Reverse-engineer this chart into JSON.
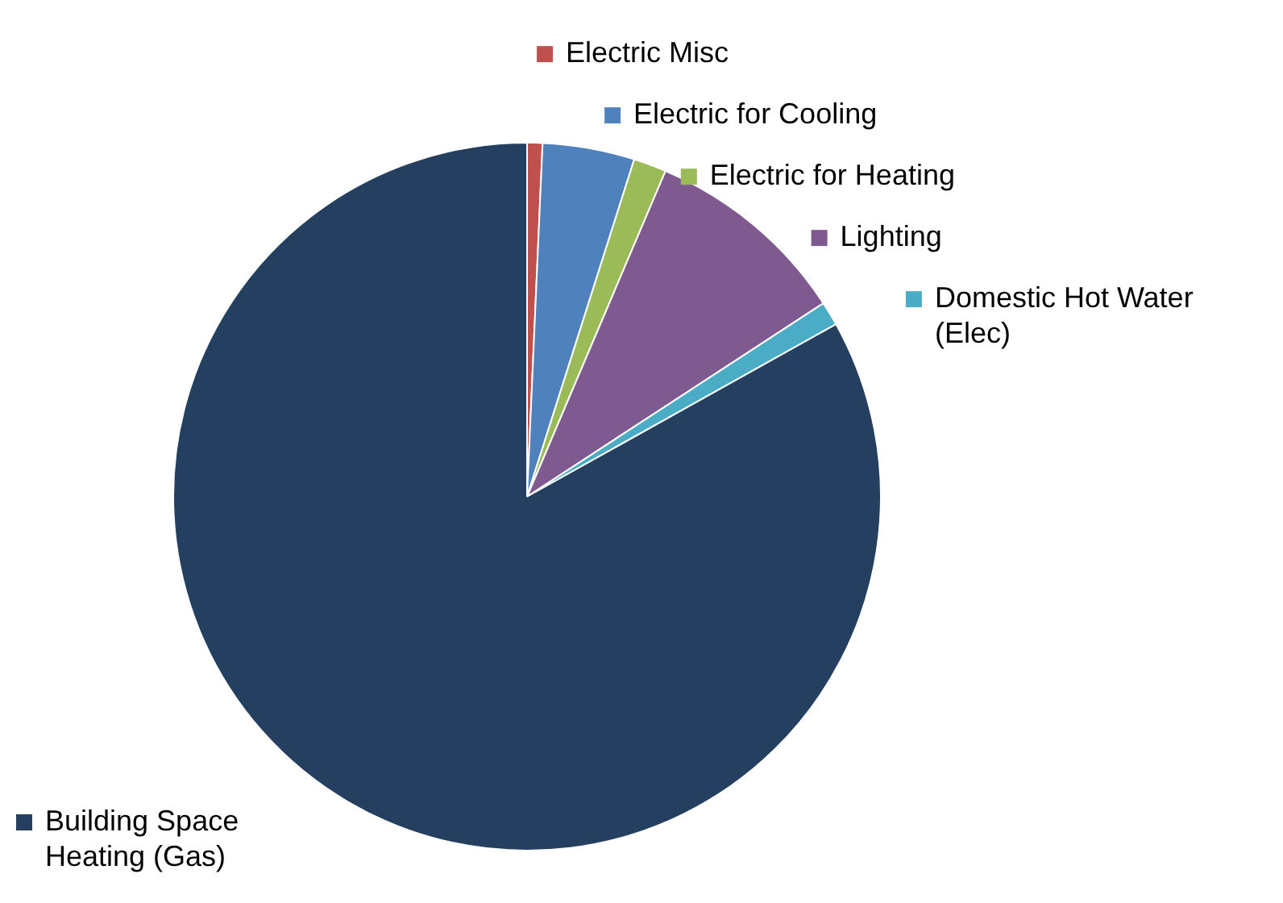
{
  "chart_data": {
    "type": "pie",
    "categories": [
      "Electric Misc",
      "Electric for Cooling",
      "Electric for Heating",
      "Lighting",
      "Domestic Hot Water (Elec)",
      "Building Space Heating (Gas)"
    ],
    "values": [
      0.7,
      4.2,
      1.5,
      9.4,
      1.1,
      83.1
    ],
    "colors": [
      "#c0504d",
      "#4f81bd",
      "#9bbb59",
      "#7f5a91",
      "#4bacc6",
      "#243f60"
    ],
    "legend": "right"
  }
}
